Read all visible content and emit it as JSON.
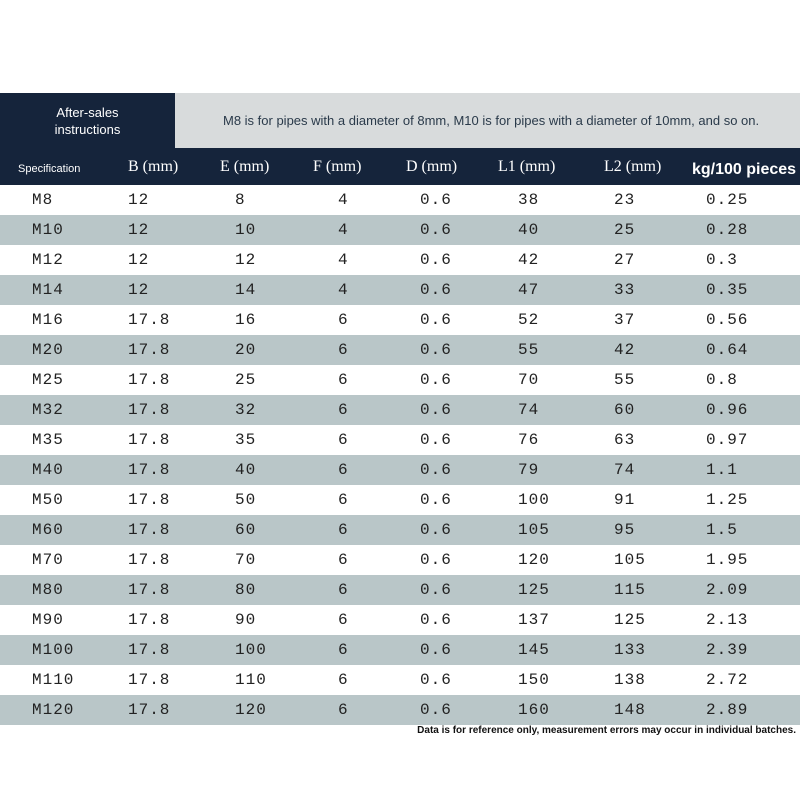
{
  "header": {
    "title": "After-sales instructions",
    "note": "M8 is for pipes with a diameter of 8mm, M10 is for pipes with a diameter of 10mm, and so on."
  },
  "table": {
    "columns": [
      "Specification",
      "B (mm)",
      "E (mm)",
      "F (mm)",
      "D (mm)",
      "L1 (mm)",
      "L2 (mm)",
      "kg/100 pieces"
    ],
    "rows": [
      [
        "M8",
        "12",
        "8",
        "4",
        "0.6",
        "38",
        "23",
        "0.25"
      ],
      [
        "M10",
        "12",
        "10",
        "4",
        "0.6",
        "40",
        "25",
        "0.28"
      ],
      [
        "M12",
        "12",
        "12",
        "4",
        "0.6",
        "42",
        "27",
        "0.3"
      ],
      [
        "M14",
        "12",
        "14",
        "4",
        "0.6",
        "47",
        "33",
        "0.35"
      ],
      [
        "M16",
        "17.8",
        "16",
        "6",
        "0.6",
        "52",
        "37",
        "0.56"
      ],
      [
        "M20",
        "17.8",
        "20",
        "6",
        "0.6",
        "55",
        "42",
        "0.64"
      ],
      [
        "M25",
        "17.8",
        "25",
        "6",
        "0.6",
        "70",
        "55",
        "0.8"
      ],
      [
        "M32",
        "17.8",
        "32",
        "6",
        "0.6",
        "74",
        "60",
        "0.96"
      ],
      [
        "M35",
        "17.8",
        "35",
        "6",
        "0.6",
        "76",
        "63",
        "0.97"
      ],
      [
        "M40",
        "17.8",
        "40",
        "6",
        "0.6",
        "79",
        "74",
        "1.1"
      ],
      [
        "M50",
        "17.8",
        "50",
        "6",
        "0.6",
        "100",
        "91",
        "1.25"
      ],
      [
        "M60",
        "17.8",
        "60",
        "6",
        "0.6",
        "105",
        "95",
        "1.5"
      ],
      [
        "M70",
        "17.8",
        "70",
        "6",
        "0.6",
        "120",
        "105",
        "1.95"
      ],
      [
        "M80",
        "17.8",
        "80",
        "6",
        "0.6",
        "125",
        "115",
        "2.09"
      ],
      [
        "M90",
        "17.8",
        "90",
        "6",
        "0.6",
        "137",
        "125",
        "2.13"
      ],
      [
        "M100",
        "17.8",
        "100",
        "6",
        "0.6",
        "145",
        "133",
        "2.39"
      ],
      [
        "M110",
        "17.8",
        "110",
        "6",
        "0.6",
        "150",
        "138",
        "2.72"
      ],
      [
        "M120",
        "17.8",
        "120",
        "6",
        "0.6",
        "160",
        "148",
        "2.89"
      ]
    ]
  },
  "footer": {
    "note": "Data is for reference only, measurement errors may occur in individual batches."
  }
}
